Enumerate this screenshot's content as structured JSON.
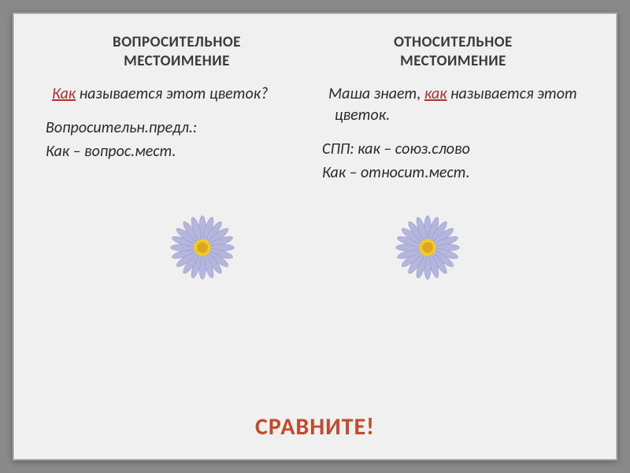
{
  "left": {
    "title_line1": "ВОПРОСИТЕЛЬНОЕ",
    "title_line2": "МЕСТОИМЕНИЕ",
    "example_kw": "Как",
    "example_rest": " называется этот цветок?",
    "note_line1": "Вопросительн.предл.:",
    "note_line2": "Как – вопрос.мест."
  },
  "right": {
    "title_line1": "ОТНОСИТЕЛЬНОЕ",
    "title_line2": "МЕСТОИМЕНИЕ",
    "example_pre": "Маша знает, ",
    "example_kw": "как",
    "example_post": " называется этот цветок.",
    "note_line1": "СПП: как – союз.слово",
    "note_line2": "Как – относит.мест."
  },
  "bottom": "СРАВНИТЕ!",
  "flower": {
    "petal_color": "#b4b6de",
    "petal_stroke": "#9294c4",
    "center_outer": "#f0c830",
    "center_inner": "#d9a820",
    "petal_count": 20
  },
  "colors": {
    "slide_bg": "#f0f0f0",
    "page_bg": "#8a8a8a",
    "title_text": "#3a3a3a",
    "body_text": "#2a2a2a",
    "keyword": "#b03030",
    "bottom_text": "#c54a2c"
  },
  "fonts": {
    "title_size": 19,
    "body_size": 20,
    "bottom_size": 30
  }
}
